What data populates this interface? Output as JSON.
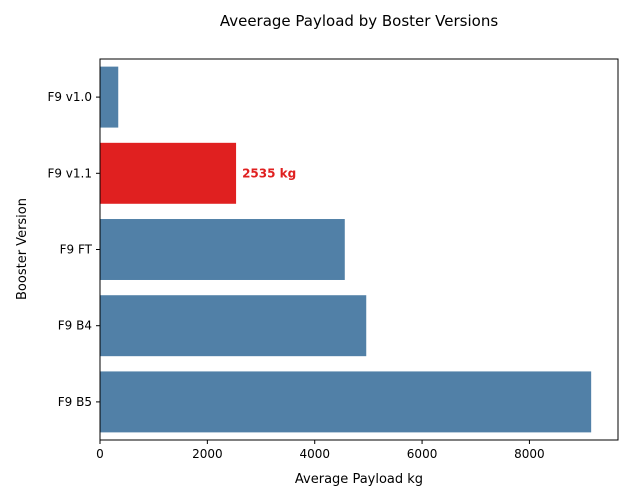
{
  "chart_data": {
    "type": "bar",
    "orientation": "horizontal",
    "title": "Aveerage Payload by Boster Versions",
    "xlabel": "Average Payload kg",
    "ylabel": "Booster Version",
    "categories": [
      "F9 v1.0",
      "F9 v1.1",
      "F9 FT",
      "F9 B4",
      "F9 B5"
    ],
    "values": [
      340,
      2535,
      4560,
      4960,
      9150
    ],
    "xlim": [
      0,
      9650
    ],
    "xticks": [
      0,
      2000,
      4000,
      6000,
      8000
    ],
    "grid": false,
    "highlight": {
      "category": "F9 v1.1",
      "color": "#e02020",
      "label": "2535 kg"
    },
    "colors": {
      "bar": "#5180a7",
      "highlight": "#e02020"
    }
  }
}
